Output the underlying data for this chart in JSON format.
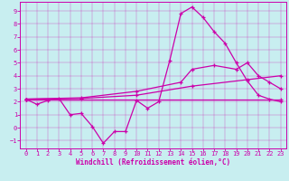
{
  "bg_color": "#c8eef0",
  "line_color": "#cc00aa",
  "xlabel": "Windchill (Refroidissement éolien,°C)",
  "xlim": [
    -0.5,
    23.5
  ],
  "ylim": [
    -1.6,
    9.7
  ],
  "xticks": [
    0,
    1,
    2,
    3,
    4,
    5,
    6,
    7,
    8,
    9,
    10,
    11,
    12,
    13,
    14,
    15,
    16,
    17,
    18,
    19,
    20,
    21,
    22,
    23
  ],
  "yticks": [
    -1,
    0,
    1,
    2,
    3,
    4,
    5,
    6,
    7,
    8,
    9
  ],
  "line1_x": [
    0,
    1,
    2,
    3,
    4,
    5,
    6,
    7,
    8,
    9,
    10,
    11,
    12,
    13,
    14,
    15,
    16,
    17,
    18,
    19,
    20,
    21,
    22,
    23
  ],
  "line1_y": [
    2.2,
    1.8,
    2.1,
    2.25,
    1.0,
    1.1,
    0.1,
    -1.2,
    -0.3,
    -0.3,
    2.1,
    1.5,
    2.0,
    5.2,
    8.8,
    9.3,
    8.5,
    7.4,
    6.5,
    5.0,
    3.6,
    2.5,
    2.2,
    2.0
  ],
  "line2_x": [
    0,
    23
  ],
  "line2_y": [
    2.2,
    2.2
  ],
  "line3_x": [
    0,
    5,
    10,
    15,
    20,
    23
  ],
  "line3_y": [
    2.2,
    2.25,
    2.5,
    3.2,
    3.7,
    4.0
  ],
  "line4_x": [
    0,
    5,
    10,
    14,
    15,
    17,
    19,
    20,
    21,
    22,
    23
  ],
  "line4_y": [
    2.2,
    2.3,
    2.8,
    3.5,
    4.5,
    4.8,
    4.5,
    5.0,
    4.0,
    3.5,
    3.0
  ]
}
